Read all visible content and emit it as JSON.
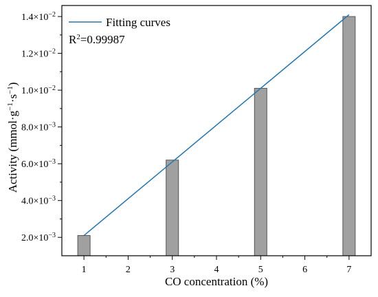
{
  "chart_data": {
    "type": "bar",
    "x_categories": [
      "1",
      "2",
      "3",
      "4",
      "5",
      "6",
      "7"
    ],
    "bars": [
      {
        "x": 1,
        "value": 0.0021
      },
      {
        "x": 3,
        "value": 0.0062
      },
      {
        "x": 5,
        "value": 0.0101
      },
      {
        "x": 7,
        "value": 0.014
      }
    ],
    "fit_line": {
      "name": "Fitting curves",
      "points": [
        {
          "x": 1,
          "y": 0.0021
        },
        {
          "x": 7,
          "y": 0.0141
        }
      ]
    },
    "annotation": {
      "base": "R",
      "sup": "2",
      "rest": "=0.99987"
    },
    "xlabel": "CO concentration (%)",
    "ylabel": {
      "part1": "Activity (mmol·g",
      "sup1": "−1",
      "part2": "·s",
      "sup2": "−1",
      "part3": ")"
    },
    "y_ticks": [
      {
        "value": 0.002,
        "mantissa": "2.0",
        "exp": "−3"
      },
      {
        "value": 0.004,
        "mantissa": "4.0",
        "exp": "−3"
      },
      {
        "value": 0.006,
        "mantissa": "6.0",
        "exp": "−3"
      },
      {
        "value": 0.008,
        "mantissa": "8.0",
        "exp": "−3"
      },
      {
        "value": 0.01,
        "mantissa": "1.0",
        "exp": "−2"
      },
      {
        "value": 0.012,
        "mantissa": "1.2",
        "exp": "−2"
      },
      {
        "value": 0.014,
        "mantissa": "1.4",
        "exp": "−2"
      }
    ],
    "xlim": [
      0.5,
      7.5
    ],
    "ylim": [
      0.001,
      0.0146
    ],
    "grid": false,
    "legend_position": "top-left",
    "colors": {
      "bar_fill": "#a0a0a0",
      "bar_stroke": "#555555",
      "line": "#1f77b4",
      "axis": "#000000"
    }
  }
}
